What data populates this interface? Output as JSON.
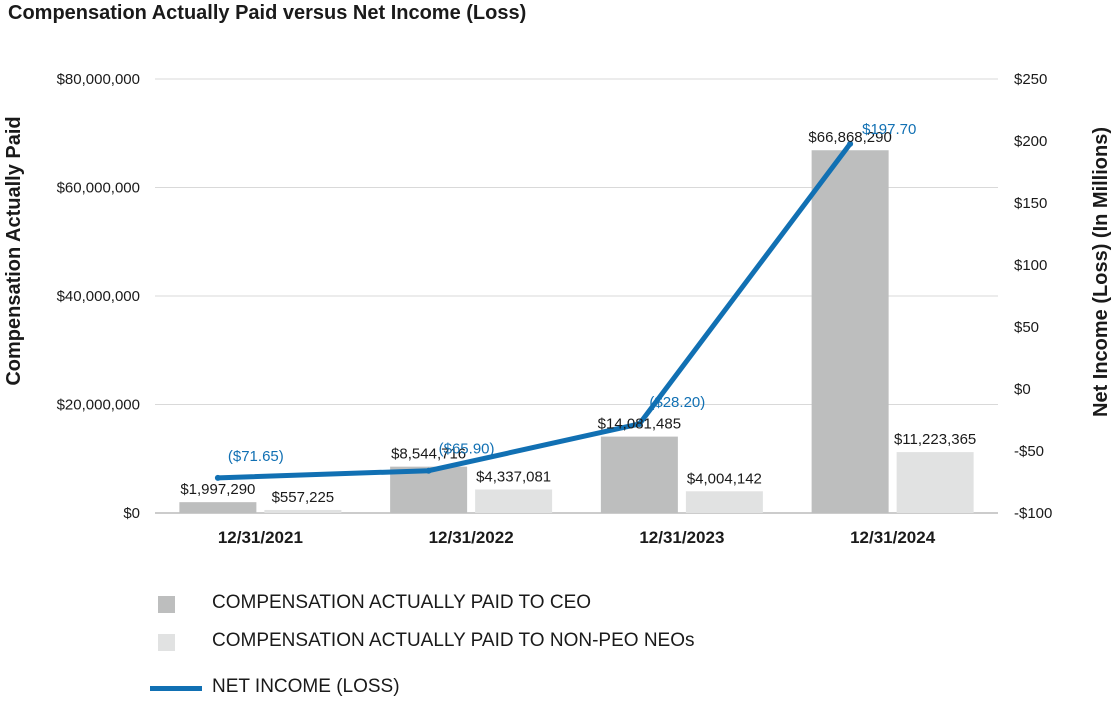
{
  "chart_data": {
    "type": "bar",
    "title": "Compensation Actually Paid versus Net Income (Loss)",
    "categories": [
      "12/31/2021",
      "12/31/2022",
      "12/31/2023",
      "12/31/2024"
    ],
    "y_left": {
      "label": "Compensation Actually Paid",
      "range": [
        0,
        80000000
      ],
      "ticks": [
        {
          "value": 0,
          "label": "$0"
        },
        {
          "value": 20000000,
          "label": "$20,000,000"
        },
        {
          "value": 40000000,
          "label": "$40,000,000"
        },
        {
          "value": 60000000,
          "label": "$60,000,000"
        },
        {
          "value": 80000000,
          "label": "$80,000,000"
        }
      ]
    },
    "y_right": {
      "label": "Net Income (Loss) (In Millions)",
      "range": [
        -100,
        250
      ],
      "ticks": [
        {
          "value": -100,
          "label": "-$100"
        },
        {
          "value": -50,
          "label": "-$50"
        },
        {
          "value": 0,
          "label": "$0"
        },
        {
          "value": 50,
          "label": "$50"
        },
        {
          "value": 100,
          "label": "$100"
        },
        {
          "value": 150,
          "label": "$150"
        },
        {
          "value": 200,
          "label": "$200"
        },
        {
          "value": 250,
          "label": "$250"
        }
      ]
    },
    "grid": true,
    "legend_position": "bottom-left",
    "series": [
      {
        "name": "COMPENSATION ACTUALLY PAID TO CEO",
        "kind": "bar",
        "axis": "left",
        "color": "#bdbebe",
        "values": [
          1997290,
          8544716,
          14081485,
          66868290
        ],
        "labels": [
          "$1,997,290",
          "$8,544,716",
          "$14,081,485",
          "$66,868,290"
        ]
      },
      {
        "name": "COMPENSATION ACTUALLY PAID TO NON-PEO NEOs",
        "kind": "bar",
        "axis": "left",
        "color": "#e1e2e2",
        "values": [
          557225,
          4337081,
          4004142,
          11223365
        ],
        "labels": [
          "$557,225",
          "$4,337,081",
          "$4,004,142",
          "$11,223,365"
        ]
      },
      {
        "name": "NET INCOME (LOSS)",
        "kind": "line",
        "axis": "right",
        "color": "#1170b3",
        "values": [
          -71.65,
          -65.9,
          -28.2,
          197.7
        ],
        "labels": [
          "($71.65)",
          "($65.90)",
          "($28.20)",
          "$197.70"
        ]
      }
    ]
  }
}
